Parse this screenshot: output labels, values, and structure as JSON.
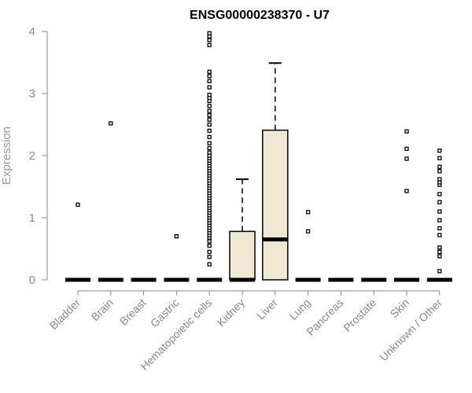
{
  "chart_data": {
    "type": "box",
    "title": "ENSG00000238370 - U7",
    "xlabel": "",
    "ylabel": "Expression",
    "ylim": [
      0,
      4
    ],
    "yticks": [
      0,
      1,
      2,
      3,
      4
    ],
    "grid": false,
    "box_fill": "#efe8d2",
    "colors": {
      "axis": "#888888",
      "box_stroke": "#000000",
      "points": "#000000"
    },
    "categories": [
      "Bladder",
      "Brain",
      "Breast",
      "Gastric",
      "Hematopoietic cells",
      "Kidney",
      "Liver",
      "Lung",
      "Pancreas",
      "Prostate",
      "Skin",
      "Unknown / Other"
    ],
    "boxes": [
      {
        "category": "Bladder",
        "q1": 0,
        "median": 0,
        "q3": 0,
        "whisker_low": 0,
        "whisker_high": 0,
        "outliers": [
          1.21
        ]
      },
      {
        "category": "Brain",
        "q1": 0,
        "median": 0,
        "q3": 0,
        "whisker_low": 0,
        "whisker_high": 0,
        "outliers": [
          2.52
        ]
      },
      {
        "category": "Breast",
        "q1": 0,
        "median": 0,
        "q3": 0,
        "whisker_low": 0,
        "whisker_high": 0,
        "outliers": []
      },
      {
        "category": "Gastric",
        "q1": 0,
        "median": 0,
        "q3": 0,
        "whisker_low": 0,
        "whisker_high": 0,
        "outliers": [
          0.7
        ]
      },
      {
        "category": "Hematopoietic cells",
        "q1": 0,
        "median": 0,
        "q3": 0,
        "whisker_low": 0,
        "whisker_high": 0,
        "outliers": [
          0.25,
          0.37,
          0.45,
          0.55,
          0.62,
          0.68,
          0.72,
          0.76,
          0.8,
          0.84,
          0.88,
          0.92,
          0.96,
          1.0,
          1.04,
          1.08,
          1.12,
          1.16,
          1.2,
          1.24,
          1.28,
          1.32,
          1.36,
          1.4,
          1.44,
          1.48,
          1.52,
          1.56,
          1.6,
          1.64,
          1.68,
          1.72,
          1.76,
          1.8,
          1.84,
          1.88,
          1.92,
          1.96,
          2.0,
          2.05,
          2.12,
          2.2,
          2.3,
          2.4,
          2.5,
          2.58,
          2.65,
          2.72,
          2.8,
          2.88,
          2.93,
          2.98,
          3.1,
          3.2,
          3.28,
          3.35,
          3.78,
          3.86,
          3.92,
          3.97
        ]
      },
      {
        "category": "Kidney",
        "q1": 0,
        "median": 0,
        "q3": 0.78,
        "whisker_low": 0,
        "whisker_high": 1.62,
        "outliers": []
      },
      {
        "category": "Liver",
        "q1": 0,
        "median": 0.65,
        "q3": 2.41,
        "whisker_low": 0,
        "whisker_high": 3.49,
        "outliers": []
      },
      {
        "category": "Lung",
        "q1": 0,
        "median": 0,
        "q3": 0,
        "whisker_low": 0,
        "whisker_high": 0,
        "outliers": [
          0.78,
          1.09
        ]
      },
      {
        "category": "Pancreas",
        "q1": 0,
        "median": 0,
        "q3": 0,
        "whisker_low": 0,
        "whisker_high": 0,
        "outliers": []
      },
      {
        "category": "Prostate",
        "q1": 0,
        "median": 0,
        "q3": 0,
        "whisker_low": 0,
        "whisker_high": 0,
        "outliers": []
      },
      {
        "category": "Skin",
        "q1": 0,
        "median": 0,
        "q3": 0,
        "whisker_low": 0,
        "whisker_high": 0,
        "outliers": [
          1.43,
          1.95,
          2.11,
          2.39
        ]
      },
      {
        "category": "Unknown / Other",
        "q1": 0,
        "median": 0,
        "q3": 0,
        "whisker_low": 0,
        "whisker_high": 0,
        "outliers": [
          0.14,
          0.38,
          0.45,
          0.52,
          0.72,
          0.83,
          0.96,
          1.1,
          1.25,
          1.38,
          1.53,
          1.57,
          1.62,
          1.75,
          1.82,
          1.96,
          2.08
        ]
      }
    ]
  }
}
